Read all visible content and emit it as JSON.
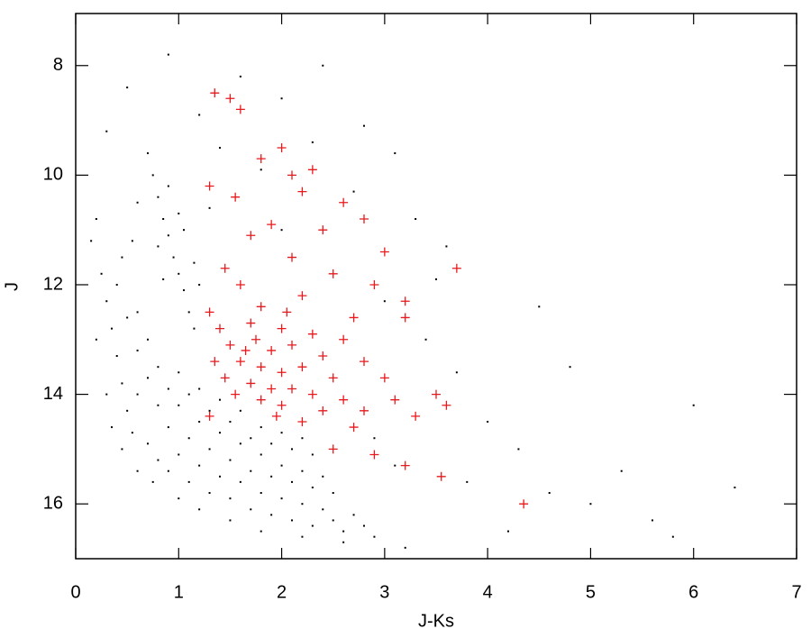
{
  "chart_data": {
    "type": "scatter",
    "xlabel": "J-Ks",
    "ylabel": "J",
    "xlim": [
      0,
      7
    ],
    "ylim": [
      17.0,
      7.05
    ],
    "xticks": [
      0,
      1,
      2,
      3,
      4,
      5,
      6,
      7
    ],
    "yticks": [
      8,
      10,
      12,
      14,
      16
    ],
    "series": [
      {
        "color": "#000000",
        "marker": "dot",
        "x": [
          0.3,
          0.35,
          0.4,
          0.45,
          0.5,
          0.55,
          0.6,
          0.7,
          0.8,
          0.9,
          1.0,
          1.1,
          1.2,
          1.3,
          1.4,
          1.5,
          1.6,
          1.7,
          1.8,
          1.9,
          2.0,
          2.1,
          2.2,
          2.3,
          2.4,
          2.5,
          2.6,
          2.7,
          2.8,
          2.9,
          0.6,
          0.7,
          0.8,
          0.9,
          1.0,
          1.1,
          1.2,
          1.3,
          1.4,
          1.5,
          1.6,
          1.7,
          1.8,
          1.9,
          2.0,
          2.1,
          2.2,
          2.3,
          2.4,
          2.5,
          0.4,
          0.5,
          0.6,
          0.7,
          0.8,
          0.9,
          1.0,
          1.1,
          1.2,
          1.3,
          1.4,
          1.5,
          1.6,
          1.7,
          1.8,
          1.9,
          2.0,
          2.1,
          2.2,
          2.3,
          0.25,
          0.45,
          0.55,
          0.2,
          0.3,
          0.35,
          0.45,
          0.6,
          0.75,
          1.0,
          1.2,
          1.5,
          1.8,
          2.2,
          2.6,
          0.7,
          0.75,
          0.8,
          0.85,
          0.9,
          0.95,
          1.0,
          1.05,
          1.1,
          1.15,
          0.9,
          1.0,
          1.05,
          1.15,
          1.2,
          0.8,
          0.85,
          0.5,
          0.9,
          1.2,
          1.6,
          2.0,
          2.4,
          2.8,
          3.1,
          1.4,
          1.8,
          2.3,
          0.3,
          0.6,
          0.2,
          2.7,
          3.3,
          3.6,
          0.15,
          1.3,
          2.0,
          3.0,
          3.4,
          3.7,
          4.0,
          4.3,
          4.6,
          5.0,
          5.3,
          5.6,
          6.0,
          6.4,
          4.8,
          3.8,
          3.2,
          4.2,
          5.8,
          4.5,
          3.5,
          2.9,
          3.1
        ],
        "y": [
          12.3,
          12.8,
          13.3,
          13.8,
          14.3,
          14.7,
          14.0,
          14.9,
          15.2,
          15.4,
          15.1,
          15.6,
          15.3,
          15.8,
          15.5,
          15.9,
          15.6,
          16.1,
          15.8,
          16.2,
          15.9,
          16.3,
          16.0,
          16.4,
          16.1,
          16.3,
          16.5,
          16.2,
          16.4,
          16.6,
          13.2,
          13.7,
          14.2,
          14.6,
          14.2,
          14.8,
          14.5,
          15.0,
          14.7,
          15.2,
          14.9,
          15.4,
          15.1,
          15.5,
          15.3,
          15.6,
          15.4,
          15.7,
          15.5,
          15.8,
          12.0,
          12.6,
          12.5,
          13.0,
          13.5,
          13.9,
          13.6,
          14.0,
          13.9,
          14.3,
          14.1,
          14.5,
          14.3,
          14.8,
          14.6,
          14.9,
          14.7,
          15.0,
          14.8,
          15.1,
          11.8,
          11.5,
          11.2,
          13.0,
          14.0,
          14.6,
          15.0,
          15.4,
          15.6,
          15.9,
          16.1,
          16.3,
          16.5,
          16.6,
          16.7,
          9.6,
          10.0,
          10.4,
          10.8,
          11.1,
          11.5,
          11.8,
          12.1,
          12.5,
          12.8,
          10.2,
          10.7,
          11.0,
          11.6,
          12.0,
          11.3,
          11.9,
          8.4,
          7.8,
          8.9,
          8.2,
          8.6,
          8.0,
          9.1,
          9.6,
          9.5,
          9.9,
          9.4,
          9.2,
          10.5,
          10.8,
          10.3,
          10.8,
          11.3,
          11.2,
          10.6,
          11.0,
          12.3,
          13.0,
          13.6,
          14.5,
          15.0,
          15.8,
          16.0,
          15.4,
          16.3,
          14.2,
          15.7,
          13.5,
          15.6,
          16.8,
          16.5,
          16.6,
          12.4,
          11.9,
          14.8,
          15.3
        ]
      },
      {
        "color": "#e8191c",
        "marker": "plus",
        "x": [
          1.35,
          1.5,
          1.6,
          2.0,
          1.8,
          2.3,
          1.3,
          2.1,
          1.55,
          2.2,
          2.6,
          2.8,
          1.9,
          2.4,
          1.7,
          3.0,
          3.7,
          2.1,
          1.45,
          2.5,
          2.9,
          1.6,
          2.2,
          3.2,
          1.3,
          1.8,
          2.7,
          3.2,
          1.4,
          1.7,
          2.0,
          2.3,
          2.6,
          1.5,
          1.9,
          2.1,
          2.4,
          2.8,
          1.35,
          1.6,
          1.8,
          2.0,
          2.2,
          2.5,
          3.0,
          1.45,
          1.7,
          1.9,
          2.1,
          2.3,
          2.6,
          1.55,
          1.8,
          2.0,
          2.4,
          3.1,
          3.5,
          1.3,
          2.2,
          2.7,
          3.3,
          2.5,
          2.9,
          3.2,
          3.55,
          4.35,
          3.6,
          2.8,
          1.65,
          2.05,
          1.75,
          1.95
        ],
        "y": [
          8.5,
          8.6,
          8.8,
          9.5,
          9.7,
          9.9,
          10.2,
          10.0,
          10.4,
          10.3,
          10.5,
          10.8,
          10.9,
          11.0,
          11.1,
          11.4,
          11.7,
          11.5,
          11.7,
          11.8,
          12.0,
          12.0,
          12.2,
          12.3,
          12.5,
          12.4,
          12.6,
          12.6,
          12.8,
          12.7,
          12.8,
          12.9,
          13.0,
          13.1,
          13.2,
          13.1,
          13.3,
          13.4,
          13.4,
          13.4,
          13.5,
          13.6,
          13.5,
          13.7,
          13.7,
          13.7,
          13.8,
          13.9,
          13.9,
          14.0,
          14.1,
          14.0,
          14.1,
          14.2,
          14.3,
          14.1,
          14.0,
          14.4,
          14.5,
          14.6,
          14.4,
          15.0,
          15.1,
          15.3,
          15.5,
          16.0,
          14.2,
          14.3,
          13.2,
          12.5,
          13.0,
          14.4
        ]
      }
    ]
  }
}
